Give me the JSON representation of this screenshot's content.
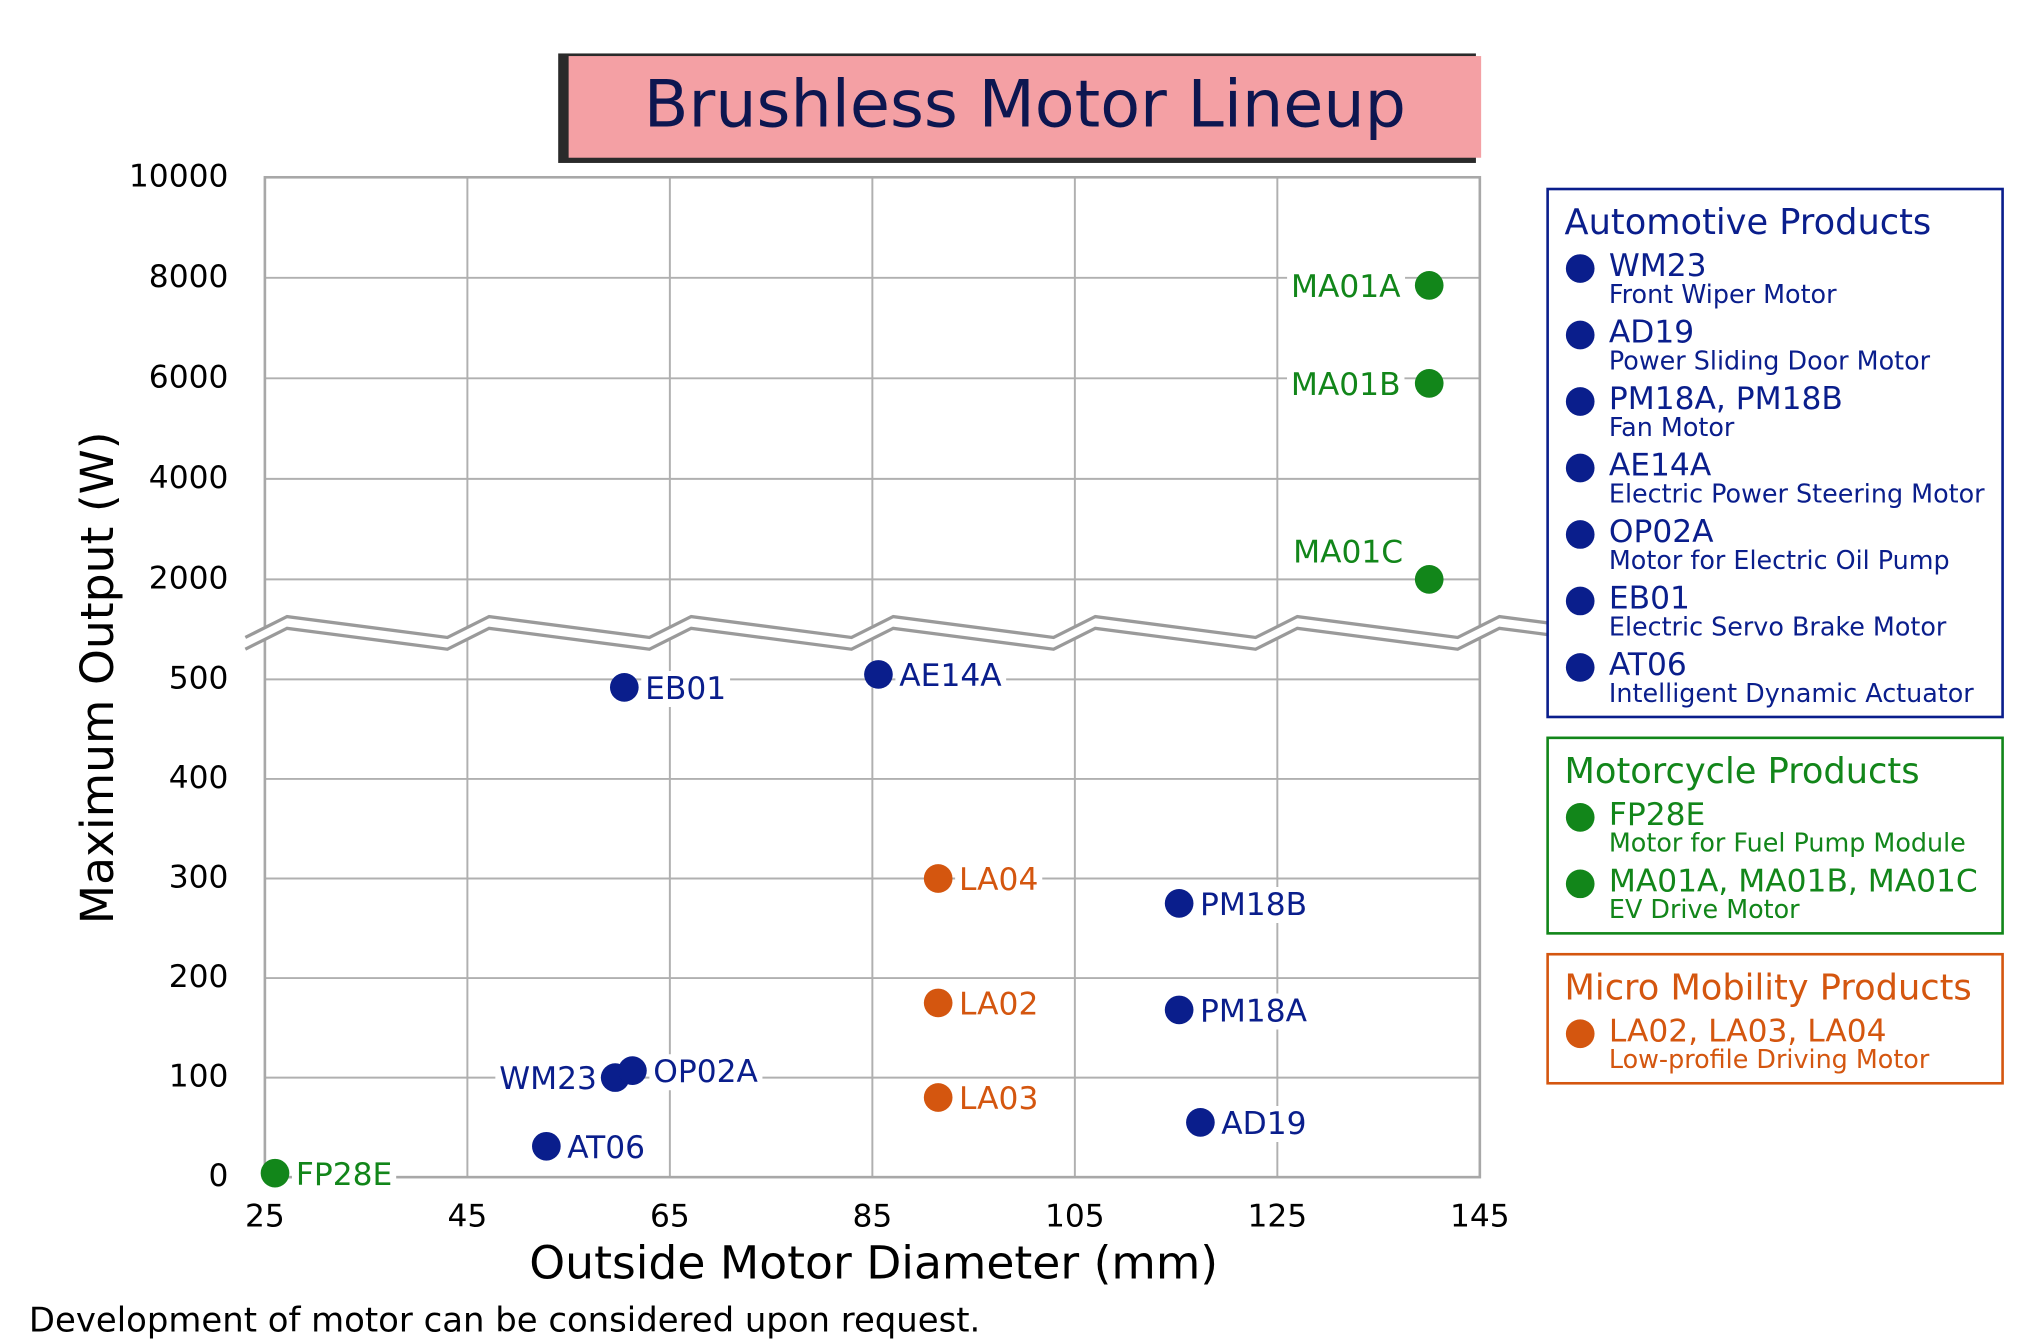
{
  "chart_data": {
    "type": "scatter",
    "title": "Brushless Motor Lineup",
    "x_label": "Outside Motor Diameter (mm)",
    "y_label": "Maximum Output (W)",
    "footnote": "Development of motor can be considered upon request.",
    "xlim": [
      25,
      145
    ],
    "xticks": [
      25,
      45,
      65,
      85,
      105,
      125,
      145
    ],
    "ylim": [
      0,
      10000
    ],
    "y_break": [
      550,
      1000
    ],
    "yticks": [
      0,
      100,
      200,
      300,
      400,
      500,
      2000,
      4000,
      6000,
      8000,
      10000
    ],
    "grid": true,
    "series": [
      {
        "name": "Automotive Products",
        "color": "#0a1e8c",
        "point_labels": [
          "WM23",
          "AD19",
          "PM18A",
          "PM18B",
          "AE14A",
          "OP02A",
          "EB01",
          "AT06"
        ],
        "x": [
          59.6,
          117.4,
          115.3,
          115.3,
          85.6,
          61.3,
          60.5,
          52.8
        ],
        "values": [
          100,
          55,
          168,
          275,
          505,
          107,
          492,
          31
        ],
        "legend_items": [
          {
            "name": "WM23",
            "desc": "Front Wiper Motor"
          },
          {
            "name": "AD19",
            "desc": "Power Sliding Door Motor"
          },
          {
            "name": "PM18A, PM18B",
            "desc": "Fan Motor"
          },
          {
            "name": "AE14A",
            "desc": "Electric Power Steering Motor"
          },
          {
            "name": "OP02A",
            "desc": "Motor for Electric Oil Pump"
          },
          {
            "name": "EB01",
            "desc": "Electric Servo Brake Motor"
          },
          {
            "name": "AT06",
            "desc": "Intelligent Dynamic Actuator"
          }
        ]
      },
      {
        "name": "Motorcycle Products",
        "color": "#12861a",
        "point_labels": [
          "FP28E",
          "MA01A",
          "MA01B",
          "MA01C"
        ],
        "x": [
          26,
          140,
          140,
          140
        ],
        "values": [
          4,
          7850,
          5900,
          2000
        ],
        "legend_items": [
          {
            "name": "FP28E",
            "desc": "Motor for Fuel Pump Module"
          },
          {
            "name": "MA01A, MA01B, MA01C",
            "desc": "EV Drive Motor"
          }
        ]
      },
      {
        "name": "Micro Mobility Products",
        "color": "#d4560f",
        "point_labels": [
          "LA04",
          "LA02",
          "LA03"
        ],
        "x": [
          91.5,
          91.5,
          91.5
        ],
        "values": [
          300,
          175,
          80
        ],
        "legend_items": [
          {
            "name": "LA02, LA03, LA04",
            "desc": "Low-profile Driving Motor"
          }
        ]
      }
    ]
  }
}
